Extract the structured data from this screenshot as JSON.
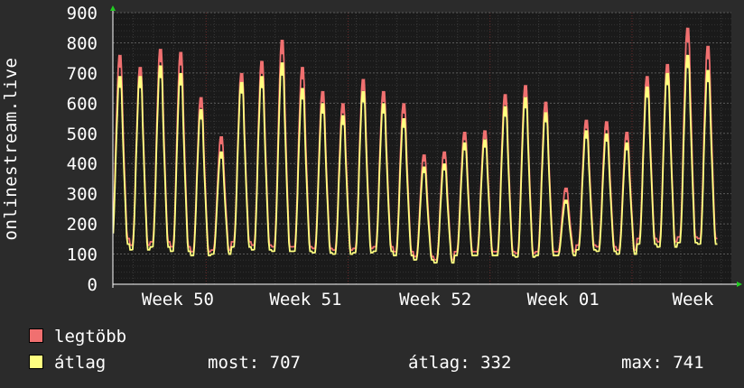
{
  "chart_data": {
    "type": "line",
    "ylabel": "onlinestream.live",
    "ylim": [
      0,
      900
    ],
    "y_ticks": [
      "0",
      "100",
      "200",
      "300",
      "400",
      "500",
      "600",
      "700",
      "800",
      "900"
    ],
    "x_tick_labels": [
      "Week 50",
      "Week 51",
      "Week 52",
      "Week 01",
      "Week"
    ],
    "grid": true,
    "legend_position": "bottom-left",
    "colors": {
      "background": "#2b2b2b",
      "plot_bg": "#1a1a1a",
      "grid": "#4a4a4a",
      "max_series": "#f07070",
      "avg_series": "#ffff80"
    },
    "daily_peaks": {
      "max": [
        760,
        720,
        780,
        770,
        620,
        490,
        700,
        740,
        810,
        720,
        640,
        600,
        680,
        640,
        600,
        430,
        440,
        505,
        510,
        630,
        660,
        605,
        320,
        545,
        540,
        505,
        690,
        730,
        850,
        790
      ],
      "avg": [
        690,
        690,
        725,
        700,
        580,
        440,
        670,
        690,
        735,
        650,
        600,
        560,
        640,
        600,
        550,
        390,
        400,
        470,
        480,
        590,
        620,
        570,
        280,
        510,
        500,
        470,
        655,
        700,
        760,
        710
      ]
    },
    "daily_minimums": [
      140,
      120,
      130,
      115,
      100,
      105,
      130,
      120,
      115,
      115,
      110,
      105,
      110,
      115,
      100,
      85,
      75,
      100,
      100,
      100,
      95,
      100,
      100,
      120,
      115,
      105,
      140,
      130,
      145,
      140
    ],
    "series": [
      {
        "name": "legtöbb"
      },
      {
        "name": "átlag"
      }
    ]
  },
  "legend": {
    "items": [
      {
        "label": "legtöbb",
        "color": "#f07070"
      },
      {
        "label": "átlag",
        "color": "#ffff80"
      }
    ],
    "stats": {
      "now": "most: 707",
      "avg": "átlag: 332",
      "max": "max: 741"
    }
  }
}
